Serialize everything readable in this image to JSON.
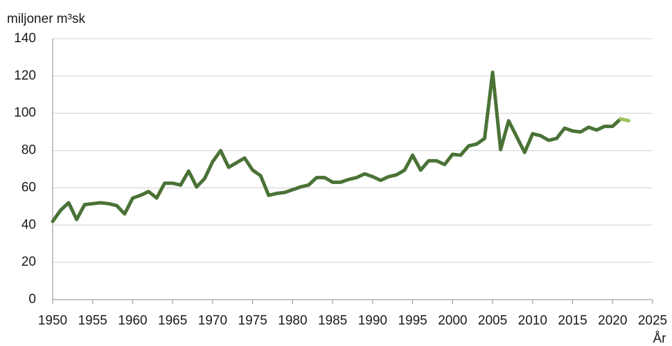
{
  "chart_data": {
    "type": "line",
    "y_label": "miljoner m³sk",
    "x_label": "År",
    "x": [
      1950,
      1951,
      1952,
      1953,
      1954,
      1955,
      1956,
      1957,
      1958,
      1959,
      1960,
      1961,
      1962,
      1963,
      1964,
      1965,
      1966,
      1967,
      1968,
      1969,
      1970,
      1971,
      1972,
      1973,
      1974,
      1975,
      1976,
      1977,
      1978,
      1979,
      1980,
      1981,
      1982,
      1983,
      1984,
      1985,
      1986,
      1987,
      1988,
      1989,
      1990,
      1991,
      1992,
      1993,
      1994,
      1995,
      1996,
      1997,
      1998,
      1999,
      2000,
      2001,
      2002,
      2003,
      2004,
      2005,
      2006,
      2007,
      2008,
      2009,
      2010,
      2011,
      2012,
      2013,
      2014,
      2015,
      2016,
      2017,
      2018,
      2019,
      2020,
      2021,
      2022
    ],
    "series": [
      {
        "color": "#4a7236",
        "values": [
          42,
          48,
          52,
          43,
          51,
          51.5,
          52,
          51.5,
          50.5,
          46,
          54.5,
          56,
          58,
          54.5,
          62.5,
          62.5,
          61.5,
          69,
          60.5,
          65,
          74,
          80,
          71,
          73.5,
          76,
          69.5,
          66.5,
          56,
          57,
          57.5,
          59,
          60.5,
          61.5,
          65.5,
          65.5,
          63,
          63,
          64.5,
          65.5,
          67.5,
          66,
          64,
          66,
          67,
          69.5,
          77.5,
          69.5,
          74.5,
          74.5,
          72.5,
          78,
          77.5,
          82.5,
          83.5,
          86.5,
          122,
          80.5,
          96,
          87.5,
          79,
          89,
          88,
          85.5,
          86.5,
          92,
          90.5,
          90,
          92.5,
          91,
          93,
          93,
          97,
          null
        ]
      },
      {
        "color": "#9bc25b",
        "values": [
          null,
          null,
          null,
          null,
          null,
          null,
          null,
          null,
          null,
          null,
          null,
          null,
          null,
          null,
          null,
          null,
          null,
          null,
          null,
          null,
          null,
          null,
          null,
          null,
          null,
          null,
          null,
          null,
          null,
          null,
          null,
          null,
          null,
          null,
          null,
          null,
          null,
          null,
          null,
          null,
          null,
          null,
          null,
          null,
          null,
          null,
          null,
          null,
          null,
          null,
          null,
          null,
          null,
          null,
          null,
          null,
          null,
          null,
          null,
          null,
          null,
          null,
          null,
          null,
          null,
          null,
          null,
          null,
          null,
          null,
          null,
          97,
          96
        ]
      }
    ],
    "xlim": [
      1950,
      2025
    ],
    "xticks": [
      1950,
      1955,
      1960,
      1965,
      1970,
      1975,
      1980,
      1985,
      1990,
      1995,
      2000,
      2005,
      2010,
      2015,
      2020,
      2025
    ],
    "ylim": [
      0,
      140
    ],
    "yticks": [
      0,
      20,
      40,
      60,
      80,
      100,
      120,
      140
    ],
    "grid": true
  }
}
